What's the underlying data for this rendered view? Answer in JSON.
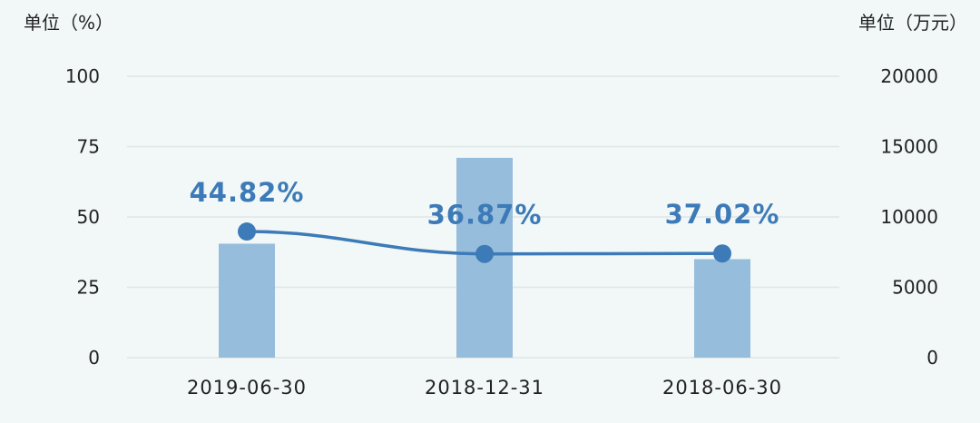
{
  "chart_data": {
    "type": "bar",
    "left_axis_unit": "单位（%）",
    "right_axis_unit": "单位（万元）",
    "categories": [
      "2019-06-30",
      "2018-12-31",
      "2018-06-30"
    ],
    "left_ticks": [
      "0",
      "25",
      "50",
      "75",
      "100"
    ],
    "right_ticks": [
      "0",
      "5000",
      "10000",
      "15000",
      "20000"
    ],
    "ylim_left": [
      0,
      100
    ],
    "ylim_right": [
      0,
      20000
    ],
    "grid": true,
    "series": [
      {
        "type": "bar",
        "axis": "right",
        "values": [
          8100,
          14200,
          7000
        ]
      },
      {
        "type": "line",
        "axis": "left",
        "values": [
          44.82,
          36.87,
          37.02
        ],
        "data_labels": [
          "44.82%",
          "36.87%",
          "37.02%"
        ]
      }
    ],
    "colors": {
      "bar": "#97bddc",
      "line": "#3d7ab8",
      "background": "#f1f8f7"
    }
  }
}
